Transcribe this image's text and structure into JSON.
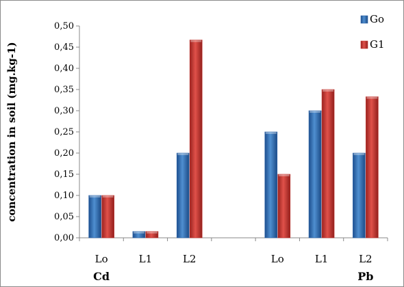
{
  "chart_data": {
    "type": "bar",
    "groups": [
      {
        "label": "Cd",
        "categories": [
          "Lo",
          "L1",
          "L2"
        ]
      },
      {
        "label": "Pb",
        "categories": [
          "Lo",
          "L1",
          "L2"
        ]
      }
    ],
    "series": [
      {
        "name": "Go",
        "values": [
          0.1,
          0.015,
          0.2,
          0.25,
          0.3,
          0.2
        ],
        "color": "#2e64a8"
      },
      {
        "name": "G1",
        "values": [
          0.1,
          0.015,
          0.467,
          0.15,
          0.35,
          0.333
        ],
        "color": "#c0302a"
      }
    ],
    "ylabel": "concentration in soil (mg.kg-1)",
    "ylim": [
      0,
      0.5
    ],
    "yticks": [
      "0,00",
      "0,05",
      "0,10",
      "0,15",
      "0,20",
      "0,25",
      "0,30",
      "0,35",
      "0,40",
      "0,45",
      "0,50"
    ],
    "grid": false,
    "legend": "top-right"
  }
}
